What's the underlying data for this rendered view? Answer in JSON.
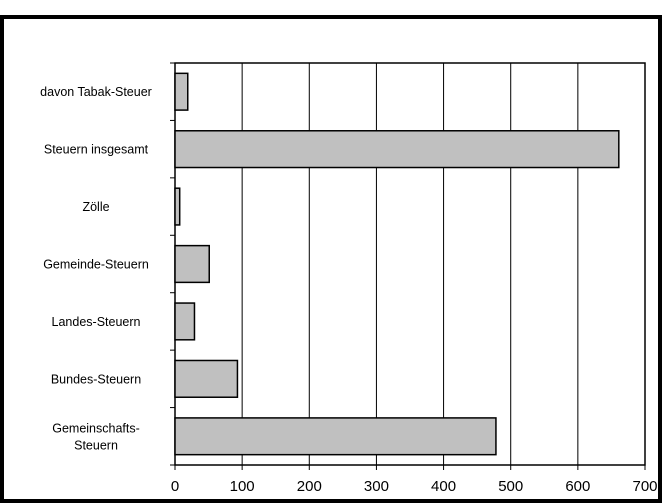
{
  "chart_data": {
    "type": "bar",
    "orientation": "horizontal",
    "categories": [
      "davon Tabak-Steuer",
      "Steuern insgesamt",
      "Zölle",
      "Gemeinde-Steuern",
      "Landes-Steuern",
      "Bundes-Steuern",
      "Gemeinschafts-Steuern"
    ],
    "category_lines": [
      [
        "davon Tabak-Steuer"
      ],
      [
        "Steuern insgesamt"
      ],
      [
        "Zölle"
      ],
      [
        "Gemeinde-Steuern"
      ],
      [
        "Landes-Steuern"
      ],
      [
        "Bundes-Steuern"
      ],
      [
        "Gemeinschafts-",
        "Steuern"
      ]
    ],
    "values": [
      19,
      661,
      7,
      51,
      29,
      93,
      478
    ],
    "xlim": [
      0,
      700
    ],
    "xticks": [
      "0",
      "100",
      "200",
      "300",
      "400",
      "500",
      "600",
      "700"
    ],
    "grid": "vertical",
    "bar_color": "#c0c0c0",
    "title": "",
    "xlabel": "",
    "ylabel": ""
  }
}
